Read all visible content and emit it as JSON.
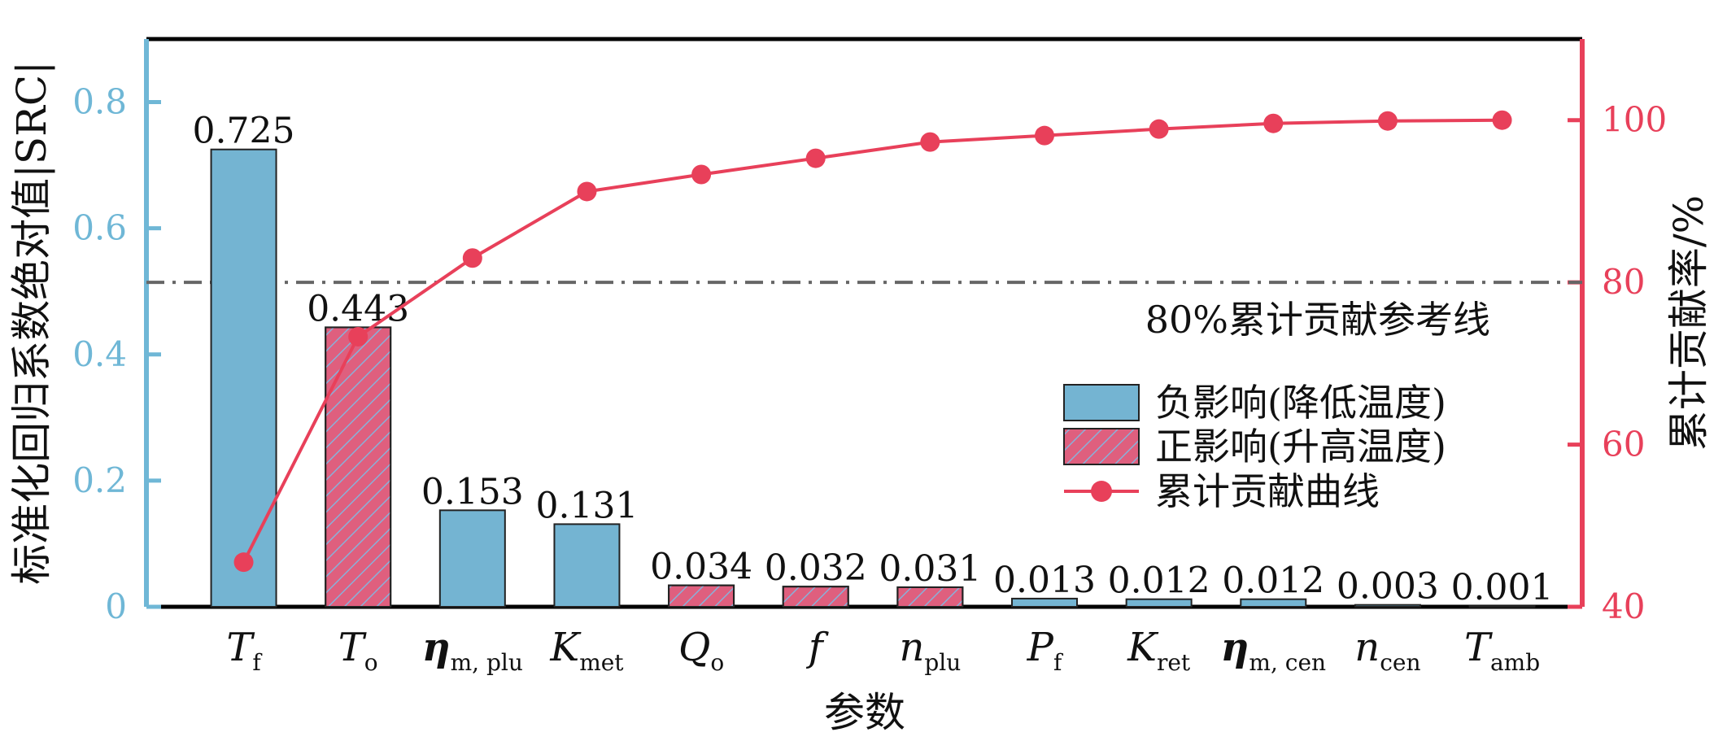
{
  "chart_data": {
    "type": "bar+line",
    "xlabel": "参数",
    "ylabel_left": "标准化回归系数绝对值|SRC|",
    "ylabel_right": "累计贡献率/%",
    "ylim_left": [
      0,
      0.9
    ],
    "ylim_right": [
      40,
      110
    ],
    "yticks_left": [
      "0",
      "0.2",
      "0.4",
      "0.6",
      "0.8"
    ],
    "yticks_right": [
      "40",
      "60",
      "80",
      "100"
    ],
    "categories": [
      {
        "main": "T",
        "sub": "f",
        "sym": false
      },
      {
        "main": "T",
        "sub": "o",
        "sym": false
      },
      {
        "main": "η",
        "sub": "m, plu",
        "sym": true
      },
      {
        "main": "K",
        "sub": "met",
        "sym": false
      },
      {
        "main": "Q",
        "sub": "o",
        "sym": false
      },
      {
        "main": "f",
        "sub": "",
        "sym": false
      },
      {
        "main": "n",
        "sub": "plu",
        "sym": false
      },
      {
        "main": "P",
        "sub": "f",
        "sym": false
      },
      {
        "main": "K",
        "sub": "ret",
        "sym": false
      },
      {
        "main": "η",
        "sub": "m, cen",
        "sym": true
      },
      {
        "main": "n",
        "sub": "cen",
        "sym": false
      },
      {
        "main": "T",
        "sub": "amb",
        "sym": false
      }
    ],
    "values": [
      0.725,
      0.443,
      0.153,
      0.131,
      0.034,
      0.032,
      0.031,
      0.013,
      0.012,
      0.012,
      0.003,
      0.001
    ],
    "value_labels": [
      "0.725",
      "0.443",
      "0.153",
      "0.131",
      "0.034",
      "0.032",
      "0.031",
      "0.013",
      "0.012",
      "0.012",
      "0.003",
      "0.001"
    ],
    "effect": [
      "neg",
      "pos",
      "neg",
      "neg",
      "pos",
      "pos",
      "pos",
      "neg",
      "neg",
      "neg",
      "neg",
      "neg"
    ],
    "cumulative": [
      45.5,
      73.3,
      83.0,
      91.2,
      93.3,
      95.3,
      97.3,
      98.1,
      98.9,
      99.6,
      99.9,
      100.0
    ],
    "reference_line": {
      "value": 80,
      "label": "80%累计贡献参考线"
    },
    "legend": [
      {
        "key": "neg",
        "label": "负影响(降低温度)"
      },
      {
        "key": "pos",
        "label": "正影响(升高温度)"
      },
      {
        "key": "line",
        "label": "累计贡献曲线"
      }
    ],
    "legend_position": "center-right",
    "grid": false,
    "colors": {
      "neg_bar": "#74b4d2",
      "pos_bar": "#df5f7e",
      "hatch": "#8ab0d8",
      "line": "#e8405a",
      "left_axis": "#6fb7d6",
      "right_axis": "#e8405a",
      "ref_line": "#666666"
    }
  }
}
